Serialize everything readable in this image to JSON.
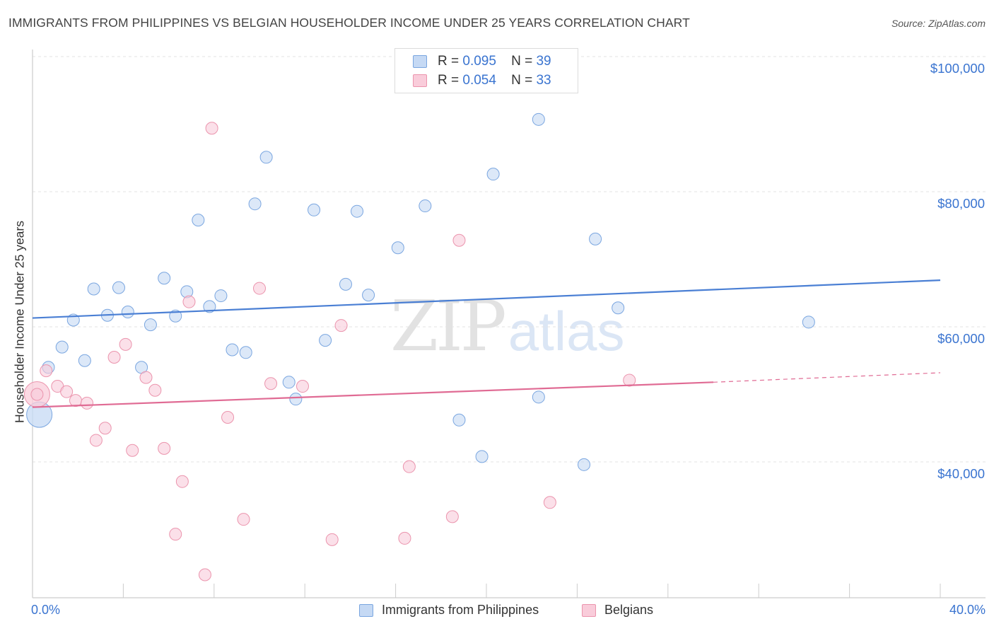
{
  "header": {
    "title": "IMMIGRANTS FROM PHILIPPINES VS BELGIAN HOUSEHOLDER INCOME UNDER 25 YEARS CORRELATION CHART",
    "source": "Source: ZipAtlas.com"
  },
  "watermark": {
    "zip": "ZIP",
    "atlas": "atlas"
  },
  "legend_top": [
    {
      "r_label": "R =",
      "r_value": "0.095",
      "n_label": "N =",
      "n_value": "39",
      "color": "#a9c8f0",
      "border": "#7aa6e0"
    },
    {
      "r_label": "R =",
      "r_value": "0.054",
      "n_label": "N =",
      "n_value": "33",
      "color": "#f7c0d0",
      "border": "#eb94ad"
    }
  ],
  "legend_bottom": [
    {
      "label": "Immigrants from Philippines",
      "color": "#a9c8f0",
      "border": "#7aa6e0"
    },
    {
      "label": "Belgians",
      "color": "#f7c0d0",
      "border": "#eb94ad"
    }
  ],
  "axes": {
    "ylabel": "Householder Income Under 25 years",
    "yticks": [
      "$100,000",
      "$80,000",
      "$60,000",
      "$40,000"
    ],
    "xtick_left": "0.0%",
    "xtick_right": "40.0%"
  },
  "chart_data": {
    "type": "scatter",
    "title": "IMMIGRANTS FROM PHILIPPINES VS BELGIAN HOUSEHOLDER INCOME UNDER 25 YEARS CORRELATION CHART",
    "xlabel": "",
    "ylabel": "Householder Income Under 25 years",
    "xlim": [
      0,
      40
    ],
    "ylim": [
      22000,
      102000
    ],
    "x_unit": "%",
    "y_ticks": [
      40000,
      60000,
      80000,
      100000
    ],
    "grid": true,
    "legend_position": "top-center",
    "series": [
      {
        "name": "Immigrants from Philippines",
        "color": "#4a7fd4",
        "fill": "#c5d9f4",
        "trend": {
          "x": [
            0,
            40
          ],
          "y": [
            61300,
            66900
          ]
        },
        "points": [
          [
            0.7,
            54000
          ],
          [
            1.3,
            57000
          ],
          [
            1.8,
            61000
          ],
          [
            2.3,
            55000
          ],
          [
            2.7,
            65600
          ],
          [
            3.3,
            61700
          ],
          [
            3.8,
            65800
          ],
          [
            4.2,
            62200
          ],
          [
            4.8,
            54000
          ],
          [
            5.2,
            60300
          ],
          [
            5.8,
            67200
          ],
          [
            6.3,
            61600
          ],
          [
            6.8,
            65200
          ],
          [
            7.3,
            75800
          ],
          [
            7.8,
            63000
          ],
          [
            8.3,
            64600
          ],
          [
            8.8,
            56600
          ],
          [
            9.4,
            56200
          ],
          [
            9.8,
            78200
          ],
          [
            10.3,
            85100
          ],
          [
            11.3,
            51800
          ],
          [
            11.6,
            49300
          ],
          [
            12.4,
            77300
          ],
          [
            12.9,
            58000
          ],
          [
            13.8,
            66300
          ],
          [
            14.3,
            77100
          ],
          [
            14.8,
            64700
          ],
          [
            16.1,
            71700
          ],
          [
            17.3,
            77900
          ],
          [
            18.8,
            46200
          ],
          [
            19.8,
            40800
          ],
          [
            20.3,
            82600
          ],
          [
            22.3,
            49600
          ],
          [
            22.3,
            90700
          ],
          [
            24.3,
            39600
          ],
          [
            24.8,
            73000
          ],
          [
            25.8,
            62800
          ],
          [
            34.2,
            60700
          ],
          [
            0.3,
            47000
          ]
        ],
        "sizes": [
          1,
          1,
          1,
          1,
          1,
          1,
          1,
          1,
          1,
          1,
          1,
          1,
          1,
          1,
          1,
          1,
          1,
          1,
          1,
          1,
          1,
          1,
          1,
          1,
          1,
          1,
          1,
          1,
          1,
          1,
          1,
          1,
          1,
          1,
          1,
          1,
          1,
          1,
          3
        ]
      },
      {
        "name": "Belgians",
        "color": "#e06b94",
        "fill": "#f9ccda",
        "trend": {
          "x": [
            0,
            30
          ],
          "y": [
            48100,
            51800
          ]
        },
        "trend_dashed": {
          "x": [
            30,
            40
          ],
          "y": [
            51800,
            53200
          ]
        },
        "points": [
          [
            0.6,
            53500
          ],
          [
            1.1,
            51200
          ],
          [
            1.5,
            50400
          ],
          [
            1.9,
            49100
          ],
          [
            2.4,
            48700
          ],
          [
            2.8,
            43200
          ],
          [
            3.2,
            45000
          ],
          [
            3.6,
            55500
          ],
          [
            4.1,
            57400
          ],
          [
            4.4,
            41700
          ],
          [
            5.0,
            52500
          ],
          [
            5.4,
            50600
          ],
          [
            5.8,
            42000
          ],
          [
            6.6,
            37100
          ],
          [
            6.3,
            29300
          ],
          [
            6.9,
            63700
          ],
          [
            7.6,
            23300
          ],
          [
            7.9,
            89400
          ],
          [
            8.6,
            46600
          ],
          [
            9.3,
            31500
          ],
          [
            10.0,
            65700
          ],
          [
            10.5,
            51600
          ],
          [
            11.9,
            51200
          ],
          [
            13.2,
            28500
          ],
          [
            13.6,
            60200
          ],
          [
            16.4,
            28700
          ],
          [
            16.6,
            39300
          ],
          [
            18.5,
            31900
          ],
          [
            18.8,
            72800
          ],
          [
            22.8,
            34000
          ],
          [
            26.3,
            52100
          ],
          [
            0.2,
            50000
          ],
          [
            0.2,
            50000
          ]
        ],
        "sizes": [
          1,
          1,
          1,
          1,
          1,
          1,
          1,
          1,
          1,
          1,
          1,
          1,
          1,
          1,
          1,
          1,
          1,
          1,
          1,
          1,
          1,
          1,
          1,
          1,
          1,
          1,
          1,
          1,
          1,
          1,
          1,
          3,
          1
        ]
      }
    ]
  }
}
